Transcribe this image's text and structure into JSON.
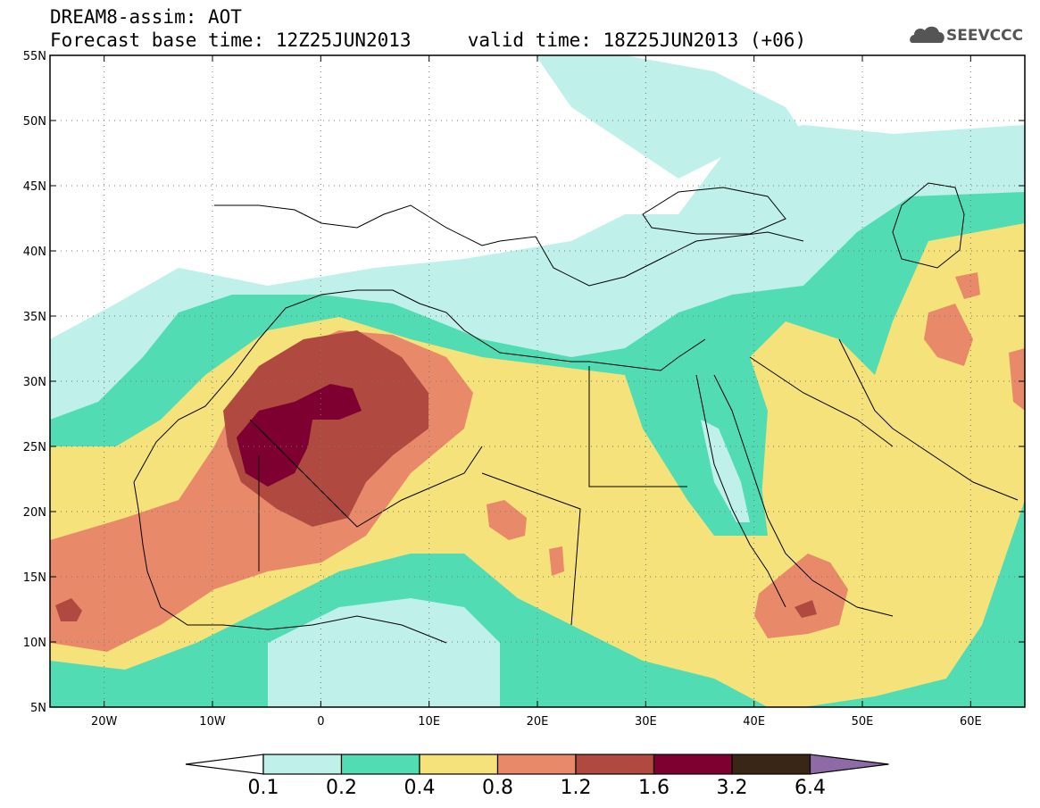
{
  "header": {
    "line1": "DREAM8-assim: AOT",
    "line2": "Forecast base time: 12Z25JUN2013     valid time: 18Z25JUN2013 (+06)",
    "logo_text": "SEEVCCC"
  },
  "map": {
    "lon_range": [
      -25,
      65
    ],
    "lat_range": [
      5,
      55
    ],
    "lat_ticks": [
      "5N",
      "10N",
      "15N",
      "20N",
      "25N",
      "30N",
      "35N",
      "40N",
      "45N",
      "50N",
      "55N"
    ],
    "lon_ticks": [
      "20W",
      "10W",
      "0",
      "10E",
      "20E",
      "30E",
      "40E",
      "50E",
      "60E"
    ],
    "region_labels": []
  },
  "colorbar": {
    "colors": [
      "#ffffff",
      "#bff0ea",
      "#52dcb4",
      "#f6e27a",
      "#e88a6a",
      "#b04a40",
      "#7e0030",
      "#3a2616",
      "#8e6aa6"
    ],
    "labels": [
      "0.1",
      "0.2",
      "0.4",
      "0.8",
      "1.2",
      "1.6",
      "3.2",
      "6.4"
    ]
  }
}
